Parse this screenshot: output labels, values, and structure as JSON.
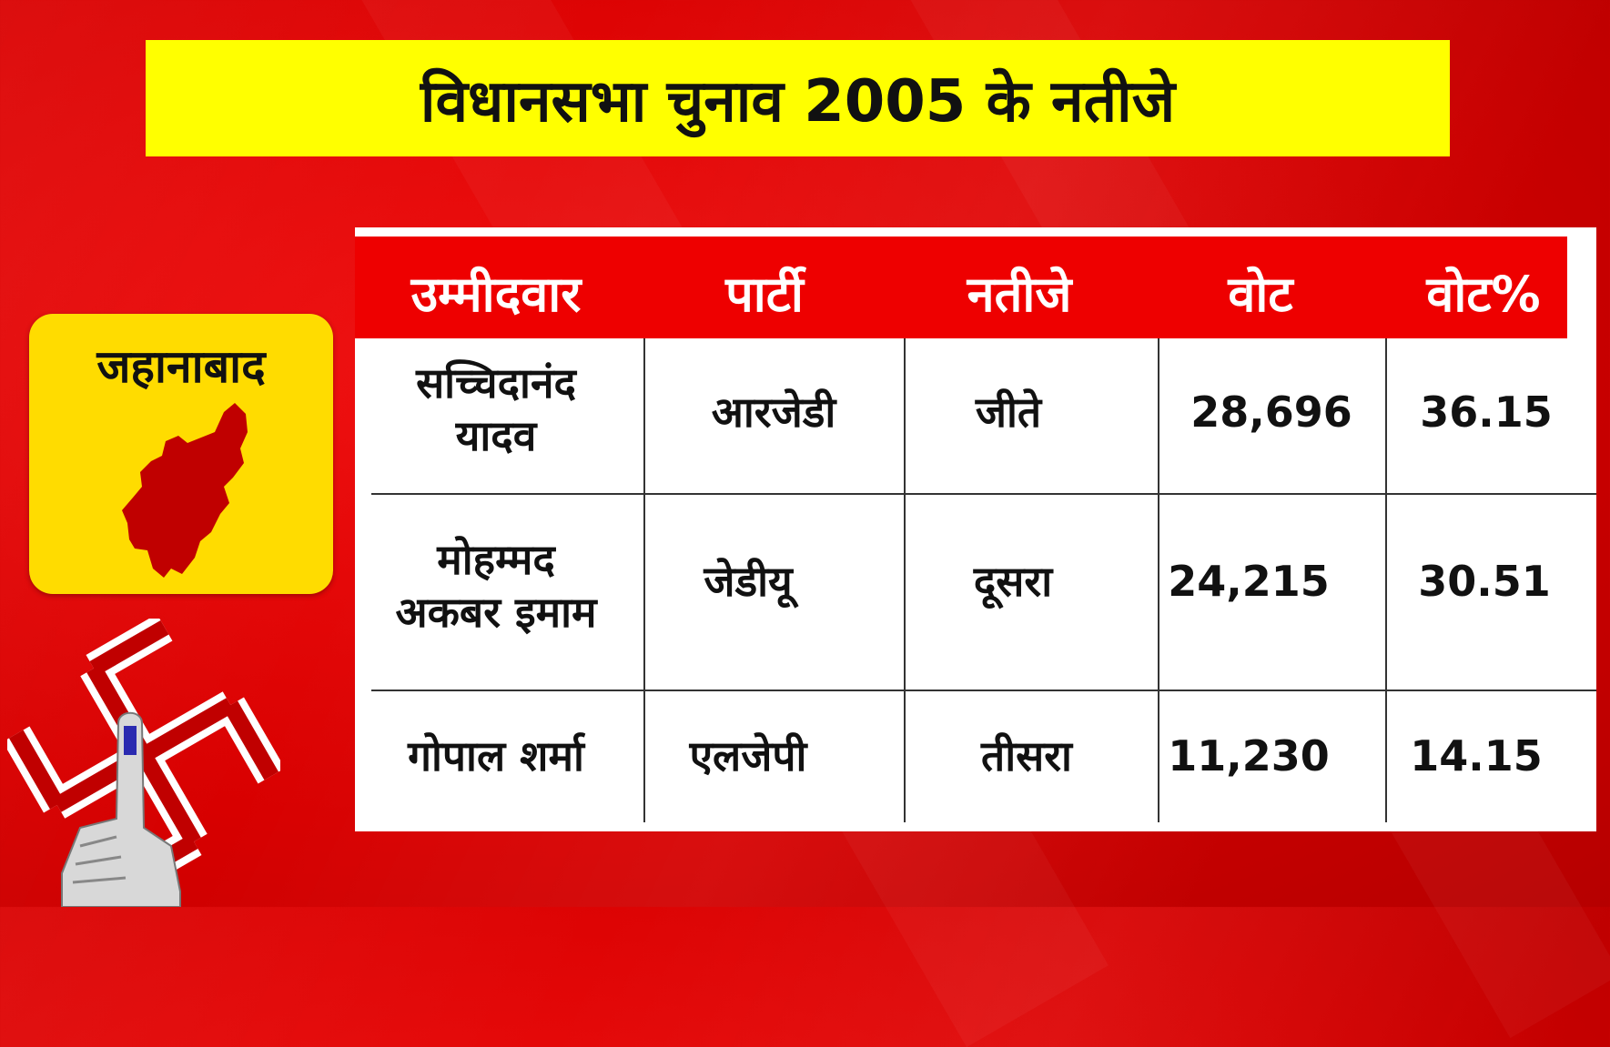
{
  "title": "विधानसभा चुनाव 2005 के नतीजे",
  "district": {
    "name": "जहानाबाद",
    "map_icon": "district-map-icon",
    "map_color": "#c00000",
    "card_color": "#ffdc00"
  },
  "election_symbol_icon": "swastik-finger-icon",
  "colors": {
    "background": "#e00000",
    "title_bar": "#ffff00",
    "header": "#ee0000"
  },
  "table": {
    "headers": [
      "उम्मीदवार",
      "पार्टी",
      "नतीजे",
      "वोट",
      "वोट%"
    ],
    "rows": [
      {
        "candidate_line1": "सच्चिदानंद",
        "candidate_line2": "यादव",
        "party": "आरजेडी",
        "result": "जीते",
        "votes": "28,696",
        "vote_pct": "36.15"
      },
      {
        "candidate_line1": "मोहम्मद",
        "candidate_line2": "अकबर इमाम",
        "party": "जेडीयू",
        "result": "दूसरा",
        "votes": "24,215",
        "vote_pct": "30.51"
      },
      {
        "candidate_line1": "गोपाल शर्मा",
        "candidate_line2": "",
        "party": "एलजेपी",
        "result": "तीसरा",
        "votes": "11,230",
        "vote_pct": "14.15"
      }
    ]
  }
}
